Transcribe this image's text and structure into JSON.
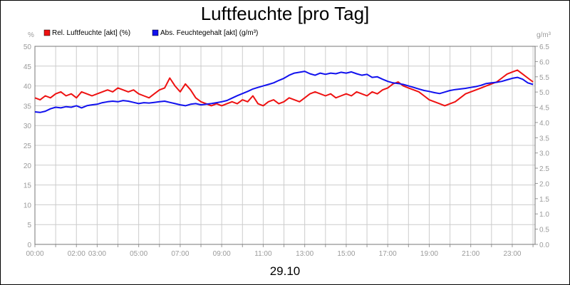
{
  "chart_data": {
    "type": "line",
    "title": "Luftfeuchte [pro Tag]",
    "date_label": "29.10",
    "y_left": {
      "unit": "%",
      "min": 0,
      "max": 50,
      "step": 5,
      "ticks": [
        "0",
        "5",
        "10",
        "15",
        "20",
        "25",
        "30",
        "35",
        "40",
        "45",
        "50"
      ]
    },
    "y_right": {
      "unit": "g/m³",
      "min": 0,
      "max": 6.5,
      "step": 0.5,
      "ticks": [
        "0.0",
        "0.5",
        "1.0",
        "1.5",
        "2.0",
        "2.5",
        "3.0",
        "3.5",
        "4.0",
        "4.5",
        "5.0",
        "5.5",
        "6.0",
        "6.5"
      ]
    },
    "x": {
      "min_hours": 0,
      "max_hours": 24.1,
      "grid_every_hours": 1,
      "tick_labels": [
        {
          "hour": 0,
          "label": "00:00"
        },
        {
          "hour": 2,
          "label": "02:00"
        },
        {
          "hour": 3,
          "label": "03:00"
        },
        {
          "hour": 5,
          "label": "05:00"
        },
        {
          "hour": 7,
          "label": "07:00"
        },
        {
          "hour": 9,
          "label": "09:00"
        },
        {
          "hour": 11,
          "label": "11:00"
        },
        {
          "hour": 13,
          "label": "13:00"
        },
        {
          "hour": 15,
          "label": "15:00"
        },
        {
          "hour": 17,
          "label": "17:00"
        },
        {
          "hour": 19,
          "label": "19:00"
        },
        {
          "hour": 21,
          "label": "21:00"
        },
        {
          "hour": 23,
          "label": "23:00"
        }
      ]
    },
    "grid": true,
    "legend_position": "top-left",
    "series": [
      {
        "name": "Rel. Luftfeuchte [akt] (%)",
        "axis": "left",
        "color": "#ee1111",
        "x": [
          0,
          0.25,
          0.5,
          0.75,
          1,
          1.25,
          1.5,
          1.75,
          2,
          2.25,
          2.5,
          2.75,
          3,
          3.25,
          3.5,
          3.75,
          4,
          4.25,
          4.5,
          4.75,
          5,
          5.25,
          5.5,
          5.75,
          6,
          6.25,
          6.5,
          6.75,
          7,
          7.25,
          7.5,
          7.75,
          8,
          8.25,
          8.5,
          8.75,
          9,
          9.25,
          9.5,
          9.75,
          10,
          10.25,
          10.5,
          10.75,
          11,
          11.25,
          11.5,
          11.75,
          12,
          12.25,
          12.5,
          12.75,
          13,
          13.25,
          13.5,
          13.75,
          14,
          14.25,
          14.5,
          14.75,
          15,
          15.25,
          15.5,
          15.75,
          16,
          16.25,
          16.5,
          16.75,
          17,
          17.25,
          17.5,
          17.75,
          18,
          18.25,
          18.5,
          18.75,
          19,
          19.25,
          19.5,
          19.75,
          20,
          20.25,
          20.5,
          20.75,
          21,
          21.25,
          21.5,
          21.75,
          22,
          22.25,
          22.5,
          22.75,
          23,
          23.25,
          23.5,
          23.75,
          24
        ],
        "values": [
          37,
          36.5,
          37.5,
          37,
          38,
          38.5,
          37.5,
          38,
          37,
          38.5,
          38,
          37.5,
          38,
          38.5,
          39,
          38.5,
          39.5,
          39,
          38.5,
          39,
          38,
          37.5,
          37,
          38,
          39,
          39.5,
          42,
          40,
          38.5,
          40.5,
          39,
          37,
          36,
          35.5,
          35,
          35.5,
          35,
          35.5,
          36,
          35.5,
          36.5,
          36,
          37.5,
          35.5,
          35,
          36,
          36.5,
          35.5,
          36,
          37,
          36.5,
          36,
          37,
          38,
          38.5,
          38,
          37.5,
          38,
          37,
          37.5,
          38,
          37.5,
          38.5,
          38,
          37.5,
          38.5,
          38,
          39,
          39.5,
          40.5,
          41,
          40,
          39.5,
          39,
          38.5,
          37.5,
          36.5,
          36,
          35.5,
          35,
          35.5,
          36,
          37,
          38,
          38.5,
          39,
          39.5,
          40,
          40.5,
          41,
          42,
          43,
          43.5,
          44,
          43,
          42,
          41
        ]
      },
      {
        "name": "Abs. Feuchtegehalt [akt] (g/m³)",
        "axis": "right",
        "color": "#1111ee",
        "x": [
          0,
          0.25,
          0.5,
          0.75,
          1,
          1.25,
          1.5,
          1.75,
          2,
          2.25,
          2.5,
          2.75,
          3,
          3.25,
          3.5,
          3.75,
          4,
          4.25,
          4.5,
          4.75,
          5,
          5.25,
          5.5,
          5.75,
          6,
          6.25,
          6.5,
          6.75,
          7,
          7.25,
          7.5,
          7.75,
          8,
          8.25,
          8.5,
          8.75,
          9,
          9.25,
          9.5,
          9.75,
          10,
          10.25,
          10.5,
          10.75,
          11,
          11.25,
          11.5,
          11.75,
          12,
          12.25,
          12.5,
          12.75,
          13,
          13.25,
          13.5,
          13.75,
          14,
          14.25,
          14.5,
          14.75,
          15,
          15.25,
          15.5,
          15.75,
          16,
          16.25,
          16.5,
          16.75,
          17,
          17.25,
          17.5,
          17.75,
          18,
          18.25,
          18.5,
          18.75,
          19,
          19.25,
          19.5,
          19.75,
          20,
          20.25,
          20.5,
          20.75,
          21,
          21.25,
          21.5,
          21.75,
          22,
          22.25,
          22.5,
          22.75,
          23,
          23.25,
          23.5,
          23.75,
          24
        ],
        "values": [
          4.35,
          4.33,
          4.37,
          4.45,
          4.5,
          4.48,
          4.52,
          4.5,
          4.55,
          4.48,
          4.55,
          4.58,
          4.6,
          4.65,
          4.68,
          4.7,
          4.68,
          4.72,
          4.7,
          4.66,
          4.62,
          4.65,
          4.64,
          4.66,
          4.68,
          4.7,
          4.66,
          4.62,
          4.58,
          4.55,
          4.6,
          4.62,
          4.58,
          4.6,
          4.62,
          4.65,
          4.68,
          4.72,
          4.8,
          4.88,
          4.95,
          5.02,
          5.1,
          5.15,
          5.2,
          5.25,
          5.3,
          5.38,
          5.45,
          5.55,
          5.62,
          5.65,
          5.68,
          5.6,
          5.55,
          5.62,
          5.58,
          5.62,
          5.6,
          5.65,
          5.62,
          5.66,
          5.6,
          5.55,
          5.58,
          5.48,
          5.5,
          5.42,
          5.35,
          5.3,
          5.28,
          5.25,
          5.2,
          5.15,
          5.1,
          5.05,
          5.02,
          4.98,
          4.95,
          5.0,
          5.05,
          5.08,
          5.1,
          5.12,
          5.15,
          5.18,
          5.22,
          5.28,
          5.3,
          5.32,
          5.35,
          5.4,
          5.45,
          5.48,
          5.42,
          5.3,
          5.25
        ]
      }
    ]
  }
}
